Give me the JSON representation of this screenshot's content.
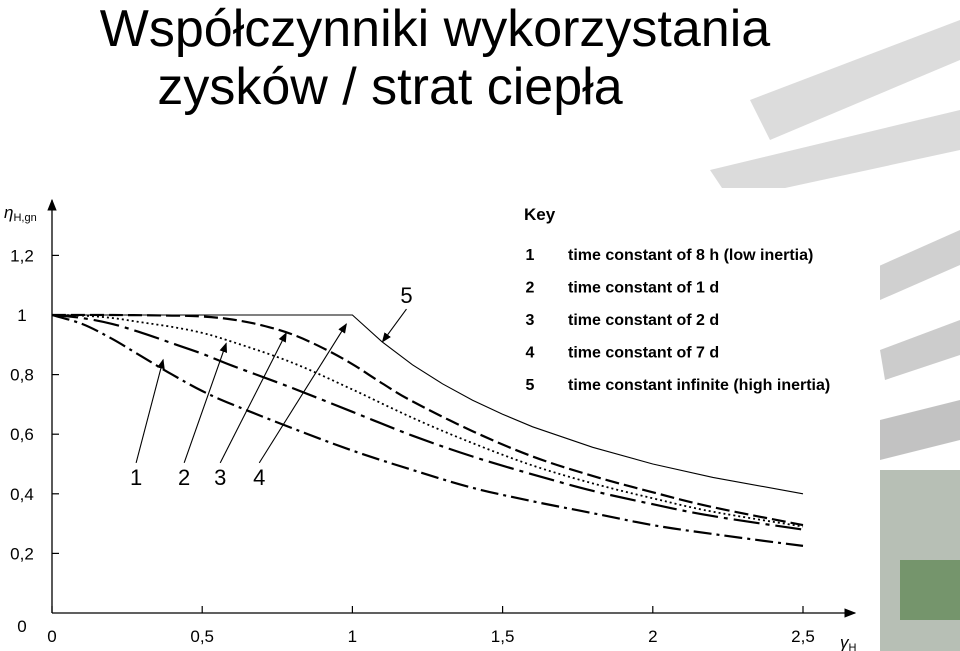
{
  "slide": {
    "title_line1": "Współczynniki wykorzystania",
    "title_line2": "zysków / strat ciepła"
  },
  "colors": {
    "background": "#ffffff",
    "text": "#000000",
    "curve": "#000000",
    "decor_stripe": "#b5b5b5",
    "decor_green": "#4a7a3c"
  },
  "chart_data": {
    "type": "line",
    "title": "",
    "xlabel": {
      "symbol": "γ",
      "subscript": "H"
    },
    "ylabel": {
      "symbol": "η",
      "subscript": "H,gn"
    },
    "xlim": [
      0,
      2.6
    ],
    "ylim": [
      0,
      1.3
    ],
    "x_ticks": [
      0,
      0.5,
      1,
      1.5,
      2,
      2.5
    ],
    "x_tick_labels": [
      "0",
      "0,5",
      "1",
      "1,5",
      "2",
      "2,5"
    ],
    "y_ticks": [
      0,
      0.2,
      0.4,
      0.6,
      0.8,
      1,
      1.2
    ],
    "y_tick_labels": [
      "0",
      "0,2",
      "0,4",
      "0,6",
      "0,8",
      "1",
      "1,2"
    ],
    "grid": false,
    "legend": {
      "title": "Key",
      "placement": "top-right",
      "entries": [
        {
          "num": "1",
          "text": "time constant of 8 h (low inertia)"
        },
        {
          "num": "2",
          "text": "time constant of 1 d"
        },
        {
          "num": "3",
          "text": "time constant of 2 d"
        },
        {
          "num": "4",
          "text": "time constant of 7 d"
        },
        {
          "num": "5",
          "text": "time constant infinite (high inertia)"
        }
      ]
    },
    "series": [
      {
        "label": "1",
        "dash": "dash-dot",
        "x": [
          0,
          0.1,
          0.2,
          0.3,
          0.4,
          0.5,
          0.6,
          0.8,
          1.0,
          1.2,
          1.4,
          1.6,
          1.8,
          2.0,
          2.2,
          2.5
        ],
        "y": [
          1.0,
          0.97,
          0.92,
          0.86,
          0.8,
          0.745,
          0.7,
          0.62,
          0.545,
          0.48,
          0.42,
          0.375,
          0.335,
          0.295,
          0.265,
          0.225
        ]
      },
      {
        "label": "2",
        "dash": "long-dash-dot",
        "x": [
          0,
          0.1,
          0.2,
          0.3,
          0.4,
          0.5,
          0.6,
          0.8,
          1.0,
          1.2,
          1.4,
          1.6,
          1.8,
          2.0,
          2.2,
          2.5
        ],
        "y": [
          1.0,
          0.99,
          0.97,
          0.94,
          0.905,
          0.87,
          0.83,
          0.755,
          0.675,
          0.595,
          0.525,
          0.465,
          0.41,
          0.365,
          0.325,
          0.28
        ]
      },
      {
        "label": "3",
        "dash": "dotted",
        "x": [
          0,
          0.1,
          0.2,
          0.3,
          0.4,
          0.5,
          0.6,
          0.8,
          1.0,
          1.2,
          1.4,
          1.6,
          1.8,
          2.0,
          2.2,
          2.5
        ],
        "y": [
          1.0,
          0.998,
          0.99,
          0.975,
          0.96,
          0.94,
          0.91,
          0.84,
          0.75,
          0.655,
          0.57,
          0.495,
          0.435,
          0.385,
          0.34,
          0.29
        ]
      },
      {
        "label": "4",
        "dash": "dashed",
        "x": [
          0,
          0.2,
          0.4,
          0.5,
          0.6,
          0.7,
          0.8,
          0.9,
          1.0,
          1.1,
          1.2,
          1.4,
          1.6,
          1.8,
          2.0,
          2.2,
          2.5
        ],
        "y": [
          1.0,
          1.0,
          0.998,
          0.995,
          0.985,
          0.965,
          0.935,
          0.89,
          0.835,
          0.77,
          0.71,
          0.61,
          0.525,
          0.46,
          0.405,
          0.355,
          0.295
        ]
      },
      {
        "label": "5",
        "dash": "solid",
        "x": [
          0,
          1.0,
          1.1,
          1.2,
          1.3,
          1.4,
          1.5,
          1.6,
          1.8,
          2.0,
          2.2,
          2.5
        ],
        "y": [
          1.0,
          1.0,
          0.909,
          0.833,
          0.769,
          0.714,
          0.667,
          0.625,
          0.556,
          0.5,
          0.455,
          0.4
        ]
      }
    ],
    "annotations": [
      {
        "text": "1",
        "label_at": [
          0.28,
          0.43
        ],
        "arrow_to": [
          0.37,
          0.85
        ]
      },
      {
        "text": "2",
        "label_at": [
          0.44,
          0.43
        ],
        "arrow_to": [
          0.58,
          0.905
        ]
      },
      {
        "text": "3",
        "label_at": [
          0.56,
          0.43
        ],
        "arrow_to": [
          0.78,
          0.94
        ]
      },
      {
        "text": "4",
        "label_at": [
          0.69,
          0.43
        ],
        "arrow_to": [
          0.98,
          0.97
        ]
      },
      {
        "text": "5",
        "label_at": [
          1.18,
          1.04
        ],
        "arrow_to": [
          1.1,
          0.91
        ]
      }
    ]
  }
}
